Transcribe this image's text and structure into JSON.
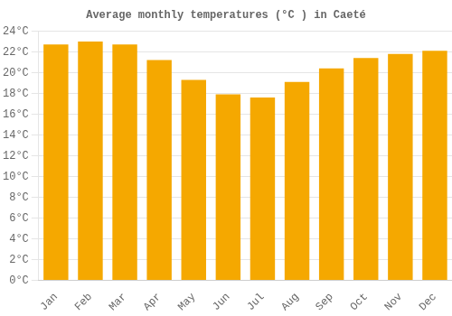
{
  "chart_data": {
    "type": "bar",
    "title": "Average monthly temperatures (°C ) in Caeté",
    "categories": [
      "Jan",
      "Feb",
      "Mar",
      "Apr",
      "May",
      "Jun",
      "Jul",
      "Aug",
      "Sep",
      "Oct",
      "Nov",
      "Dec"
    ],
    "values": [
      22.7,
      23.0,
      22.7,
      21.2,
      19.3,
      17.9,
      17.6,
      19.1,
      20.4,
      21.4,
      21.8,
      22.1
    ],
    "color": "#F5A800",
    "ylim": [
      0,
      24
    ],
    "yticks": [
      {
        "value": 0,
        "label": "0°C"
      },
      {
        "value": 2,
        "label": "2°C"
      },
      {
        "value": 4,
        "label": "4°C"
      },
      {
        "value": 6,
        "label": "6°C"
      },
      {
        "value": 8,
        "label": "8°C"
      },
      {
        "value": 10,
        "label": "10°C"
      },
      {
        "value": 12,
        "label": "12°C"
      },
      {
        "value": 14,
        "label": "14°C"
      },
      {
        "value": 16,
        "label": "16°C"
      },
      {
        "value": 18,
        "label": "18°C"
      },
      {
        "value": 20,
        "label": "20°C"
      },
      {
        "value": 22,
        "label": "22°C"
      },
      {
        "value": 24,
        "label": "24°C"
      }
    ],
    "grid": "y"
  }
}
